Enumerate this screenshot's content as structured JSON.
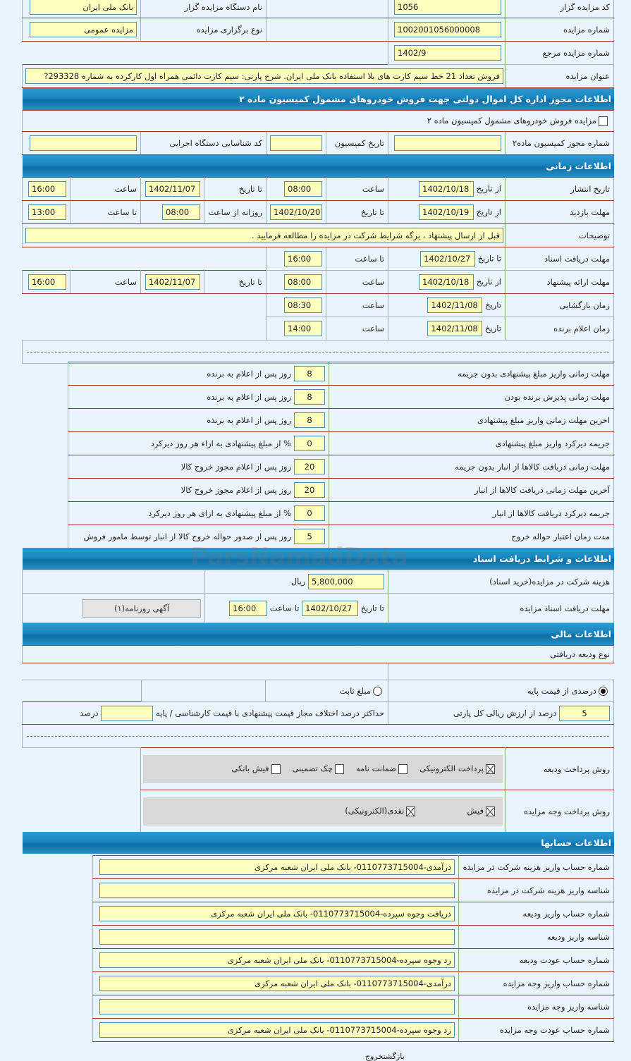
{
  "top": {
    "code_label": "کد مزایده گزار",
    "code": "1056",
    "org_label": "نام دستگاه مزایده گزار",
    "org": "بانک ملی ایران",
    "number_label": "شماره مزایده",
    "number": "1002001056000008",
    "type_label": "نوع برگزاری مزایده",
    "type": "مزایده عمومی",
    "ref_label": "شماره مزایده مرجع",
    "ref": "1402/9",
    "title_label": "عنوان مزایده",
    "title": "فروش تعداد 21 خط سیم کارت های بلا استفاده بانک ملی ایران. شرح پارتی: سیم کارت دائمی همراه اول کارکرده به شماره 293328?"
  },
  "commission": {
    "header": "اطلاعات مجوز اداره کل اموال دولتی جهت فروش خودروهای مشمول کمیسیون ماده ۲",
    "checkbox_label": "مزایده فروش خودروهای مشمول کمیسیون ماده ۲",
    "permit_label": "شماره مجوز کمیسیون ماده۲",
    "date_label": "تاریخ کمیسیون",
    "agency_label": "کد شناسایی دستگاه اجرایی"
  },
  "time": {
    "header": "اطلاعات زمانی",
    "publish": {
      "label": "تاریخ انتشار",
      "from": "از تاریخ",
      "from_date": "1402/10/18",
      "time_label": "ساعت",
      "time": "08:00",
      "to": "تا تاریخ",
      "to_date": "1402/11/07",
      "time2_label": "ساعت",
      "time2": "16:00"
    },
    "visit": {
      "label": "مهلت بازدید",
      "from": "از تاریخ",
      "from_date": "1402/10/19",
      "to": "تا تاریخ",
      "to_date": "1402/10/20",
      "daily": "روزانه از ساعت",
      "daily_from": "08:00",
      "until": "تا ساعت",
      "daily_to": "13:00"
    },
    "desc_label": "توضیحات",
    "desc": "قبل از ارسال پیشنهاد ، برگه شرایط شرکت در مزایده را مطالعه فرمایید .",
    "docs": {
      "label": "مهلت دریافت اسناد",
      "to": "تا تاریخ",
      "date": "1402/10/27",
      "time_label": "تا ساعت",
      "time": "16:00"
    },
    "offer": {
      "label": "مهلت ارائه پیشنهاد",
      "from": "از تاریخ",
      "from_date": "1402/10/18",
      "time_label": "ساعت",
      "time": "08:00",
      "to": "تا تاریخ",
      "to_date": "1402/11/07",
      "time2_label": "ساعت",
      "time2": "16:00"
    },
    "opening": {
      "label": "زمان بازگشایی",
      "date_label": "تاریخ",
      "date": "1402/11/08",
      "time_label": "ساعت",
      "time": "08:30"
    },
    "winner": {
      "label": "زمان اعلام برنده",
      "date_label": "تاریخ",
      "date": "1402/11/08",
      "time_label": "ساعت",
      "time": "14:00"
    }
  },
  "deadlines": [
    {
      "label": "مهلت زمانی واریز مبلغ پیشنهادی بدون جریمه",
      "value": "8",
      "unit": "روز پس از اعلام به برنده"
    },
    {
      "label": "مهلت زمانی پذیرش برنده بودن",
      "value": "8",
      "unit": "روز پس از اعلام به برنده"
    },
    {
      "label": "اخرین مهلت زمانی واریز مبلغ پیشنهادی",
      "value": "8",
      "unit": "روز پس از اعلام به برنده"
    },
    {
      "label": "جریمه دیرکرد واریز مبلغ پیشنهادی",
      "value": "0",
      "unit": "% از مبلغ پیشنهادی به ازاء هر روز دیرکرد"
    },
    {
      "label": "مهلت زمانی دریافت کالاها از انبار بدون جریمه",
      "value": "20",
      "unit": "روز پس از اعلام مجوز خروج کالا"
    },
    {
      "label": "آخرین مهلت زمانی دریافت کالاها از انبار",
      "value": "20",
      "unit": "روز پس از اعلام مجوز خروج کالا"
    },
    {
      "label": "جریمه دیرکرد دریافت کالاها از انبار",
      "value": "0",
      "unit": "% از مبلغ پیشنهادی به ازای هر روز دیرکرد"
    },
    {
      "label": "مدت زمان اعتبار حواله خروج",
      "value": "5",
      "unit": "روز پس از صدور حواله خروج کالا از انبار توسط مامور فروش"
    }
  ],
  "docs_section": {
    "header": "اطلاعات و شرایط دریافت اسناد",
    "fee_label": "هزینه شرکت در مزایده(خرید اسناد)",
    "fee": "5,800,000",
    "currency": "ریال",
    "deadline_label": "مهلت دریافت اسناد مزایده",
    "to_date": "تا تاریخ",
    "date": "1402/10/27",
    "to_time": "تا ساعت",
    "time": "16:00",
    "newspaper_button": "آگهی روزنامه(۱)"
  },
  "finance": {
    "header": "اطلاعات مالی",
    "deposit_type": "نوع ودیعه دریافتی",
    "percent_option": "درصدی از قیمت پایه",
    "fixed_option": "مبلغ ثابت",
    "selected": "percent",
    "percent_value": "5",
    "percent_unit": "درصد از ارزش ریالی کل پارتی",
    "max_diff_label": "حداکثر درصد اختلاف مجاز قیمت پیشنهادی با قیمت کارشناسی / پایه",
    "max_diff_value": "",
    "max_diff_unit": "درصد",
    "deposit_method_label": "روش پرداخت ودیعه",
    "deposit_methods": [
      {
        "label": "پرداخت الکترونیکی",
        "checked": true
      },
      {
        "label": "ضمانت نامه",
        "checked": false
      },
      {
        "label": "چک تضمینی",
        "checked": false
      },
      {
        "label": "فیش بانکی",
        "checked": false
      }
    ],
    "payment_method_label": "روش پرداخت وجه مزایده",
    "payment_methods": [
      {
        "label": "فیش",
        "checked": true
      },
      {
        "label": "نقدی(الکترونیکی)",
        "checked": true
      }
    ]
  },
  "accounts": {
    "header": "اطلاعات حسابها",
    "rows": [
      {
        "label": "شماره حساب واریز هزینه شرکت در مزایده",
        "value": "درآمدی-0110773715004- بانک ملی ایران شعبه مرکزی"
      },
      {
        "label": "شناسه واریز هزینه شرکت در مزایده",
        "value": ""
      },
      {
        "label": "شماره حساب واریز ودیعه",
        "value": "دریافت وجوه سپرده-0110773715004- بانک ملی ایران شعبه مرکزی"
      },
      {
        "label": "شناسه واریز ودیعه",
        "value": ""
      },
      {
        "label": "شماره حساب عودت ودیعه",
        "value": "رد وجوه سپرده-0110773715004- بانک ملی ایران شعبه مرکزی"
      },
      {
        "label": "شماره حساب واریز وجه مزایده",
        "value": "درآمدی-0110773715004- بانک ملی ایران شعبه مرکزی"
      },
      {
        "label": "شناسه واریز وجه مزایده",
        "value": ""
      },
      {
        "label": "شماره حساب عودت وجه مزایده",
        "value": "رد وجوه سپرده-0110773715004- بانک ملی ایران شعبه مرکزی"
      }
    ]
  },
  "footer": {
    "back": "بازگشت",
    "exit": "خروج"
  },
  "watermark": "ParsNamadData"
}
